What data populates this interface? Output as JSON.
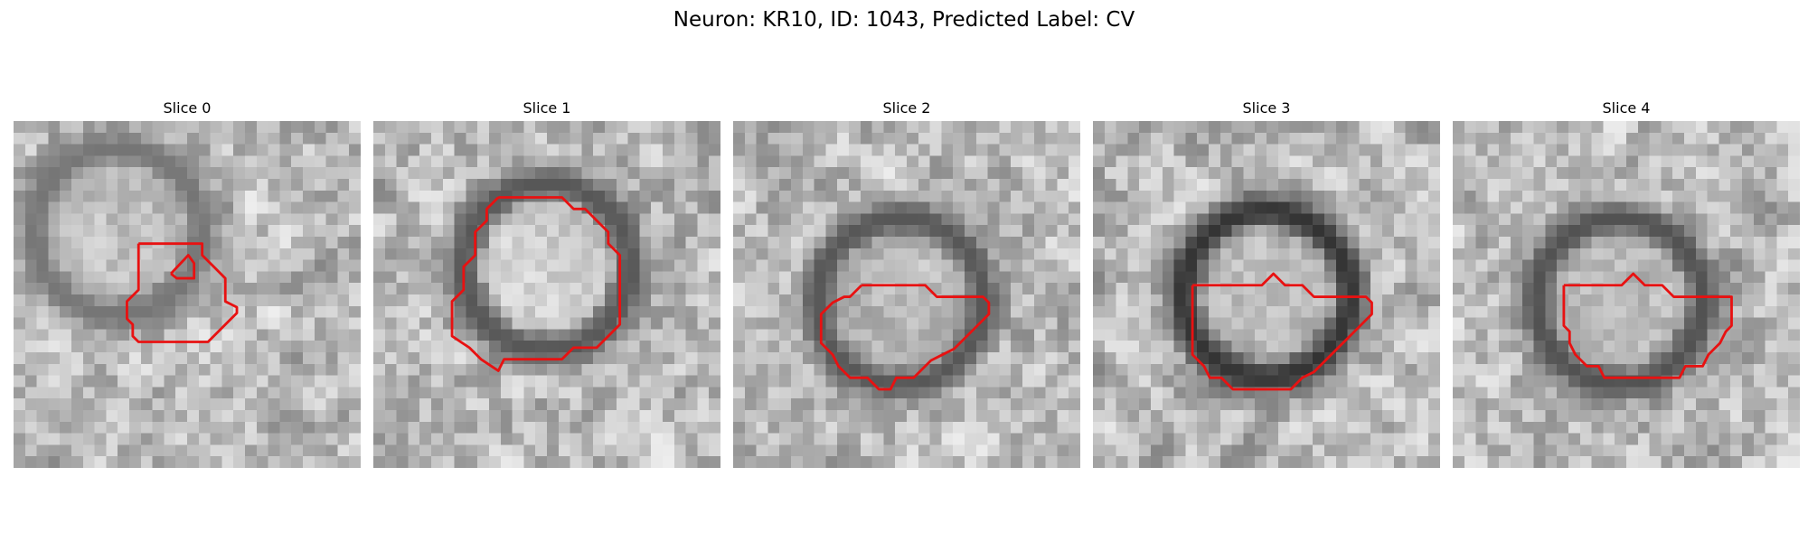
{
  "figure": {
    "title": "Neuron: KR10, ID: 1043, Predicted Label: CV"
  },
  "contour_color": "#e81111",
  "panels": [
    {
      "title": "Slice 0",
      "seed": 11,
      "ring": [
        0.3,
        0.32
      ],
      "center_bright": 0.78,
      "edge_dark": 0.46
    },
    {
      "title": "Slice 1",
      "seed": 23,
      "ring": [
        0.5,
        0.42
      ],
      "center_bright": 0.94,
      "edge_dark": 0.34
    },
    {
      "title": "Slice 2",
      "seed": 37,
      "ring": [
        0.48,
        0.52
      ],
      "center_bright": 0.72,
      "edge_dark": 0.34
    },
    {
      "title": "Slice 3",
      "seed": 49,
      "ring": [
        0.5,
        0.5
      ],
      "center_bright": 0.74,
      "edge_dark": 0.2
    },
    {
      "title": "Slice 4",
      "seed": 61,
      "ring": [
        0.48,
        0.52
      ],
      "center_bright": 0.76,
      "edge_dark": 0.32
    }
  ]
}
